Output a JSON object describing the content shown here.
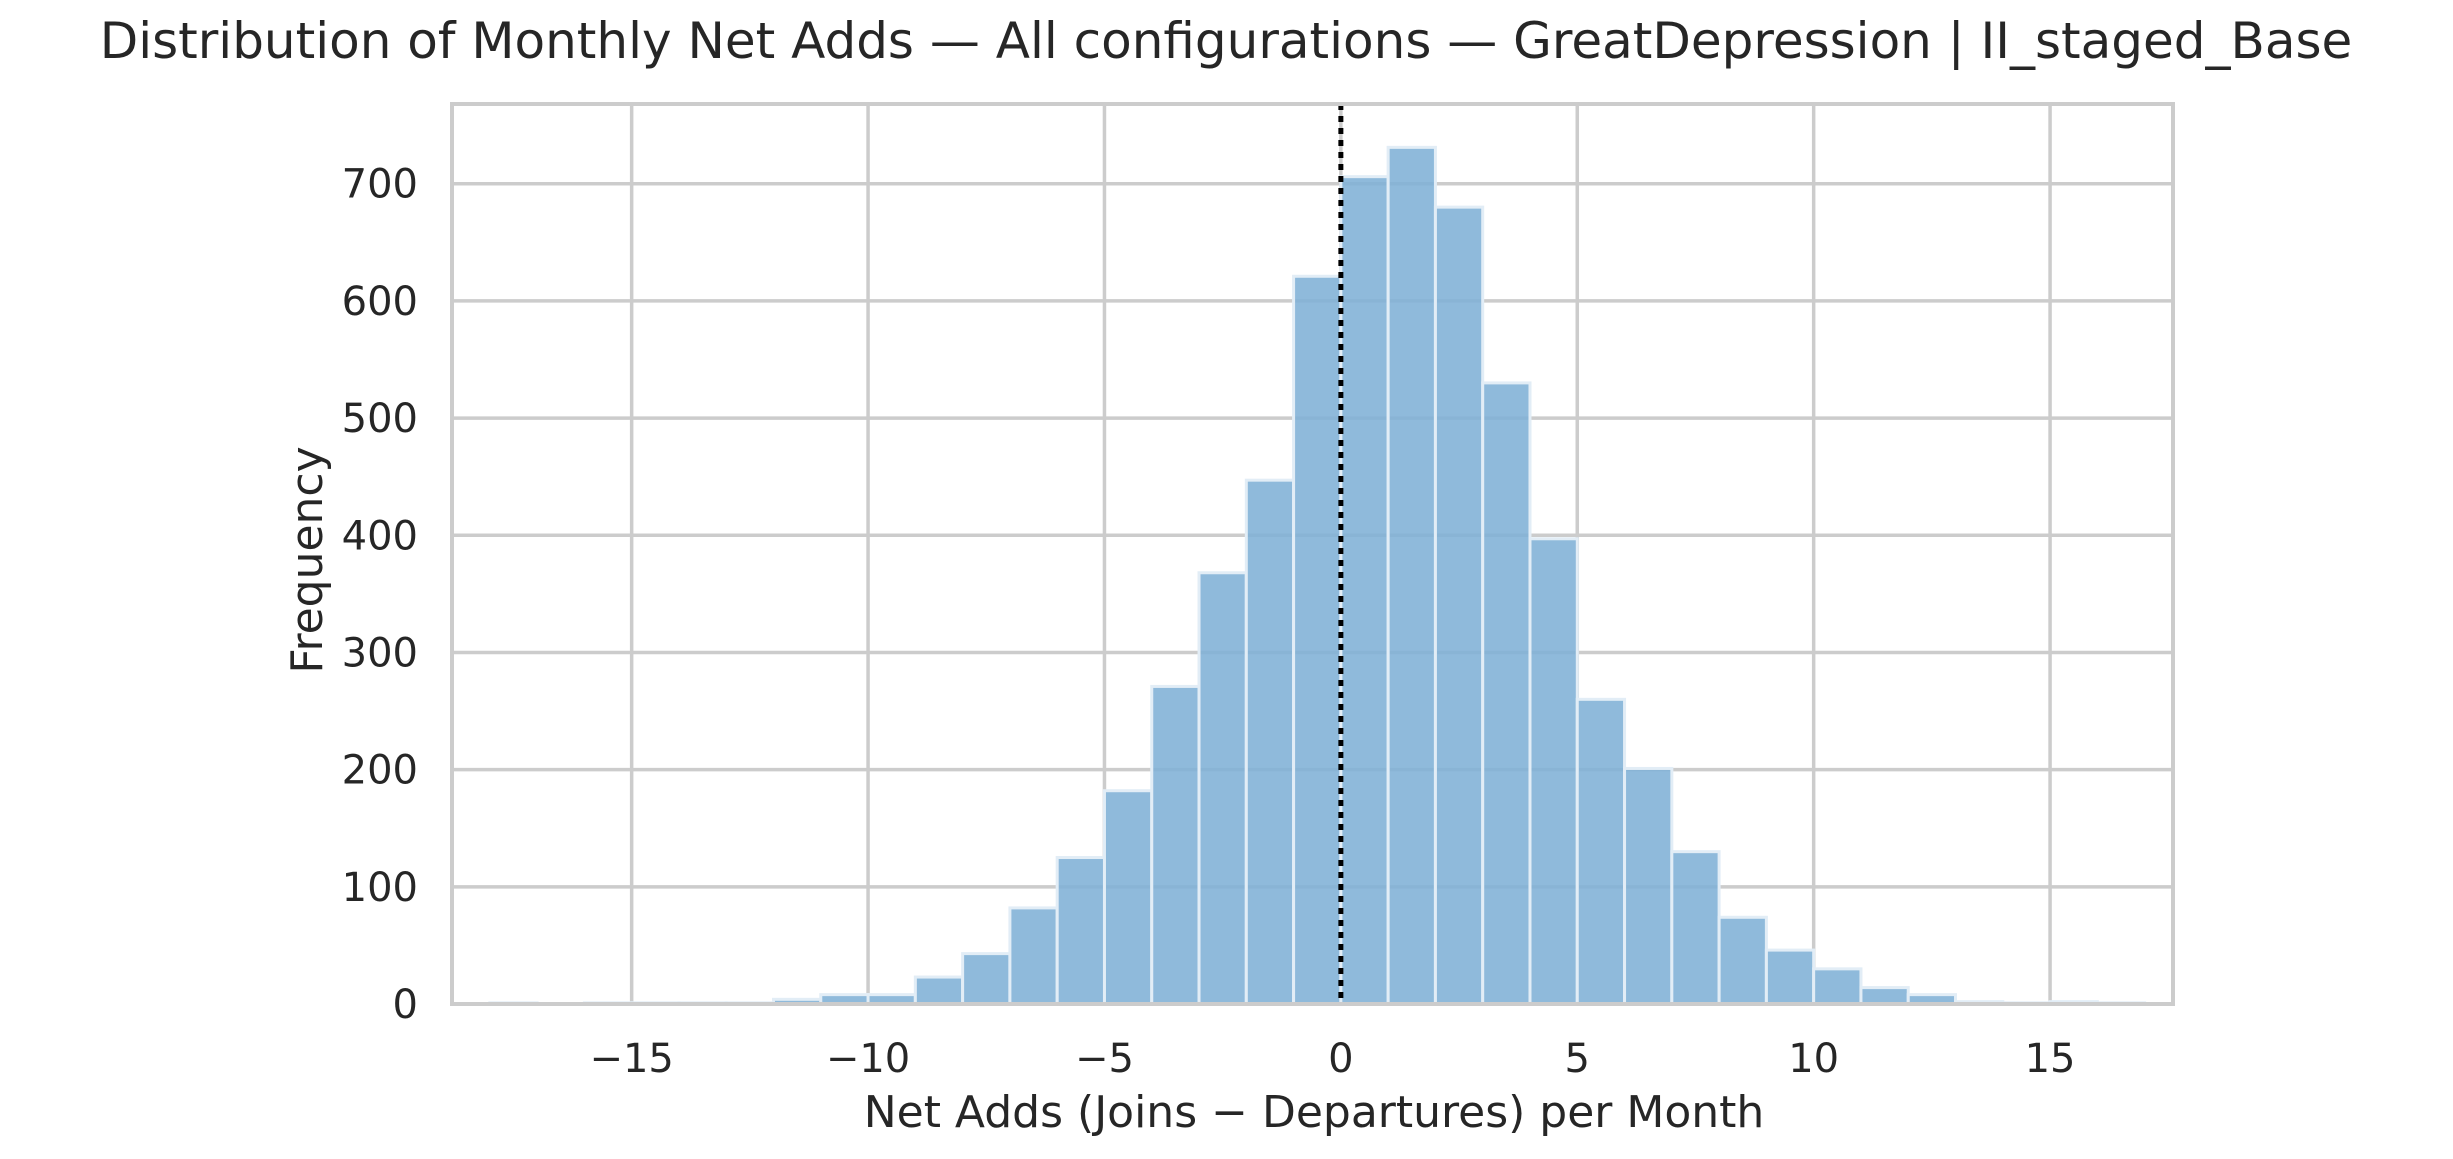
{
  "colors": {
    "bar_fill": "#7FB1D6",
    "bar_edge": "#E2EDF6",
    "grid": "#CCCCCC",
    "axes_edge": "#CCCCCC",
    "zero_line": "#000000",
    "text": "#262626",
    "background": "#FFFFFF"
  },
  "chart_data": {
    "type": "bar",
    "title": "Distribution of Monthly Net Adds — All configurations — GreatDepression | II_staged_Base",
    "xlabel": "Net Adds (Joins − Departures) per Month",
    "ylabel": "Frequency",
    "xlim": [
      -18.8,
      17.6
    ],
    "ylim": [
      0,
      768
    ],
    "xticks": [
      -15,
      -10,
      -5,
      0,
      5,
      10,
      15
    ],
    "xtick_labels": [
      "−15",
      "−10",
      "−5",
      "0",
      "5",
      "10",
      "15"
    ],
    "yticks": [
      0,
      100,
      200,
      300,
      400,
      500,
      600,
      700
    ],
    "ytick_labels": [
      "0",
      "100",
      "200",
      "300",
      "400",
      "500",
      "600",
      "700"
    ],
    "grid": true,
    "reference_line": {
      "x": 0,
      "style": "dotted"
    },
    "bins": [
      {
        "start": -18,
        "end": -17,
        "value": 1
      },
      {
        "start": -17,
        "end": -16,
        "value": 0
      },
      {
        "start": -16,
        "end": -15,
        "value": 1
      },
      {
        "start": -15,
        "end": -14,
        "value": 1
      },
      {
        "start": -14,
        "end": -13,
        "value": 1
      },
      {
        "start": -13,
        "end": -12,
        "value": 1
      },
      {
        "start": -12,
        "end": -11,
        "value": 4
      },
      {
        "start": -11,
        "end": -10,
        "value": 8
      },
      {
        "start": -10,
        "end": -9,
        "value": 8
      },
      {
        "start": -9,
        "end": -8,
        "value": 23
      },
      {
        "start": -8,
        "end": -7,
        "value": 43
      },
      {
        "start": -7,
        "end": -6,
        "value": 82
      },
      {
        "start": -6,
        "end": -5,
        "value": 125
      },
      {
        "start": -5,
        "end": -4,
        "value": 182
      },
      {
        "start": -4,
        "end": -3,
        "value": 271
      },
      {
        "start": -3,
        "end": -2,
        "value": 368
      },
      {
        "start": -2,
        "end": -1,
        "value": 447
      },
      {
        "start": -1,
        "end": 0,
        "value": 621
      },
      {
        "start": 0,
        "end": 1,
        "value": 706
      },
      {
        "start": 1,
        "end": 2,
        "value": 731
      },
      {
        "start": 2,
        "end": 3,
        "value": 680
      },
      {
        "start": 3,
        "end": 4,
        "value": 530
      },
      {
        "start": 4,
        "end": 5,
        "value": 397
      },
      {
        "start": 5,
        "end": 6,
        "value": 260
      },
      {
        "start": 6,
        "end": 7,
        "value": 201
      },
      {
        "start": 7,
        "end": 8,
        "value": 130
      },
      {
        "start": 8,
        "end": 9,
        "value": 74
      },
      {
        "start": 9,
        "end": 10,
        "value": 46
      },
      {
        "start": 10,
        "end": 11,
        "value": 30
      },
      {
        "start": 11,
        "end": 12,
        "value": 14
      },
      {
        "start": 12,
        "end": 13,
        "value": 8
      },
      {
        "start": 13,
        "end": 14,
        "value": 2
      },
      {
        "start": 14,
        "end": 15,
        "value": 1
      },
      {
        "start": 15,
        "end": 16,
        "value": 2
      },
      {
        "start": 16,
        "end": 17,
        "value": 1
      }
    ]
  }
}
